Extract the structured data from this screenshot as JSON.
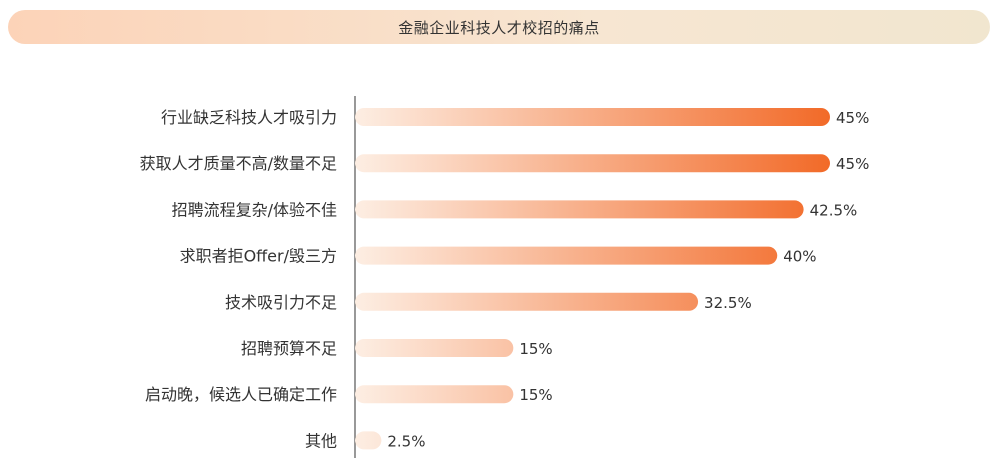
{
  "colors": {
    "bar_start": "#fdeee3",
    "bar_end": "#f26a28",
    "axis": "#555555"
  },
  "chart_data": {
    "type": "bar",
    "orientation": "horizontal",
    "title": "金融企业科技人才校招的痛点",
    "categories": [
      "行业缺乏科技人才吸引力",
      "获取人才质量不高/数量不足",
      "招聘流程复杂/体验不佳",
      "求职者拒Offer/毁三方",
      "技术吸引力不足",
      "招聘预算不足",
      "启动晚，候选人已确定工作",
      "其他"
    ],
    "values": [
      45,
      45,
      42.5,
      40,
      32.5,
      15,
      15,
      2.5
    ],
    "value_labels": [
      "45%",
      "45%",
      "42.5%",
      "40%",
      "32.5%",
      "15%",
      "15%",
      "2.5%"
    ],
    "xlim": [
      0,
      45
    ],
    "grid": false
  }
}
